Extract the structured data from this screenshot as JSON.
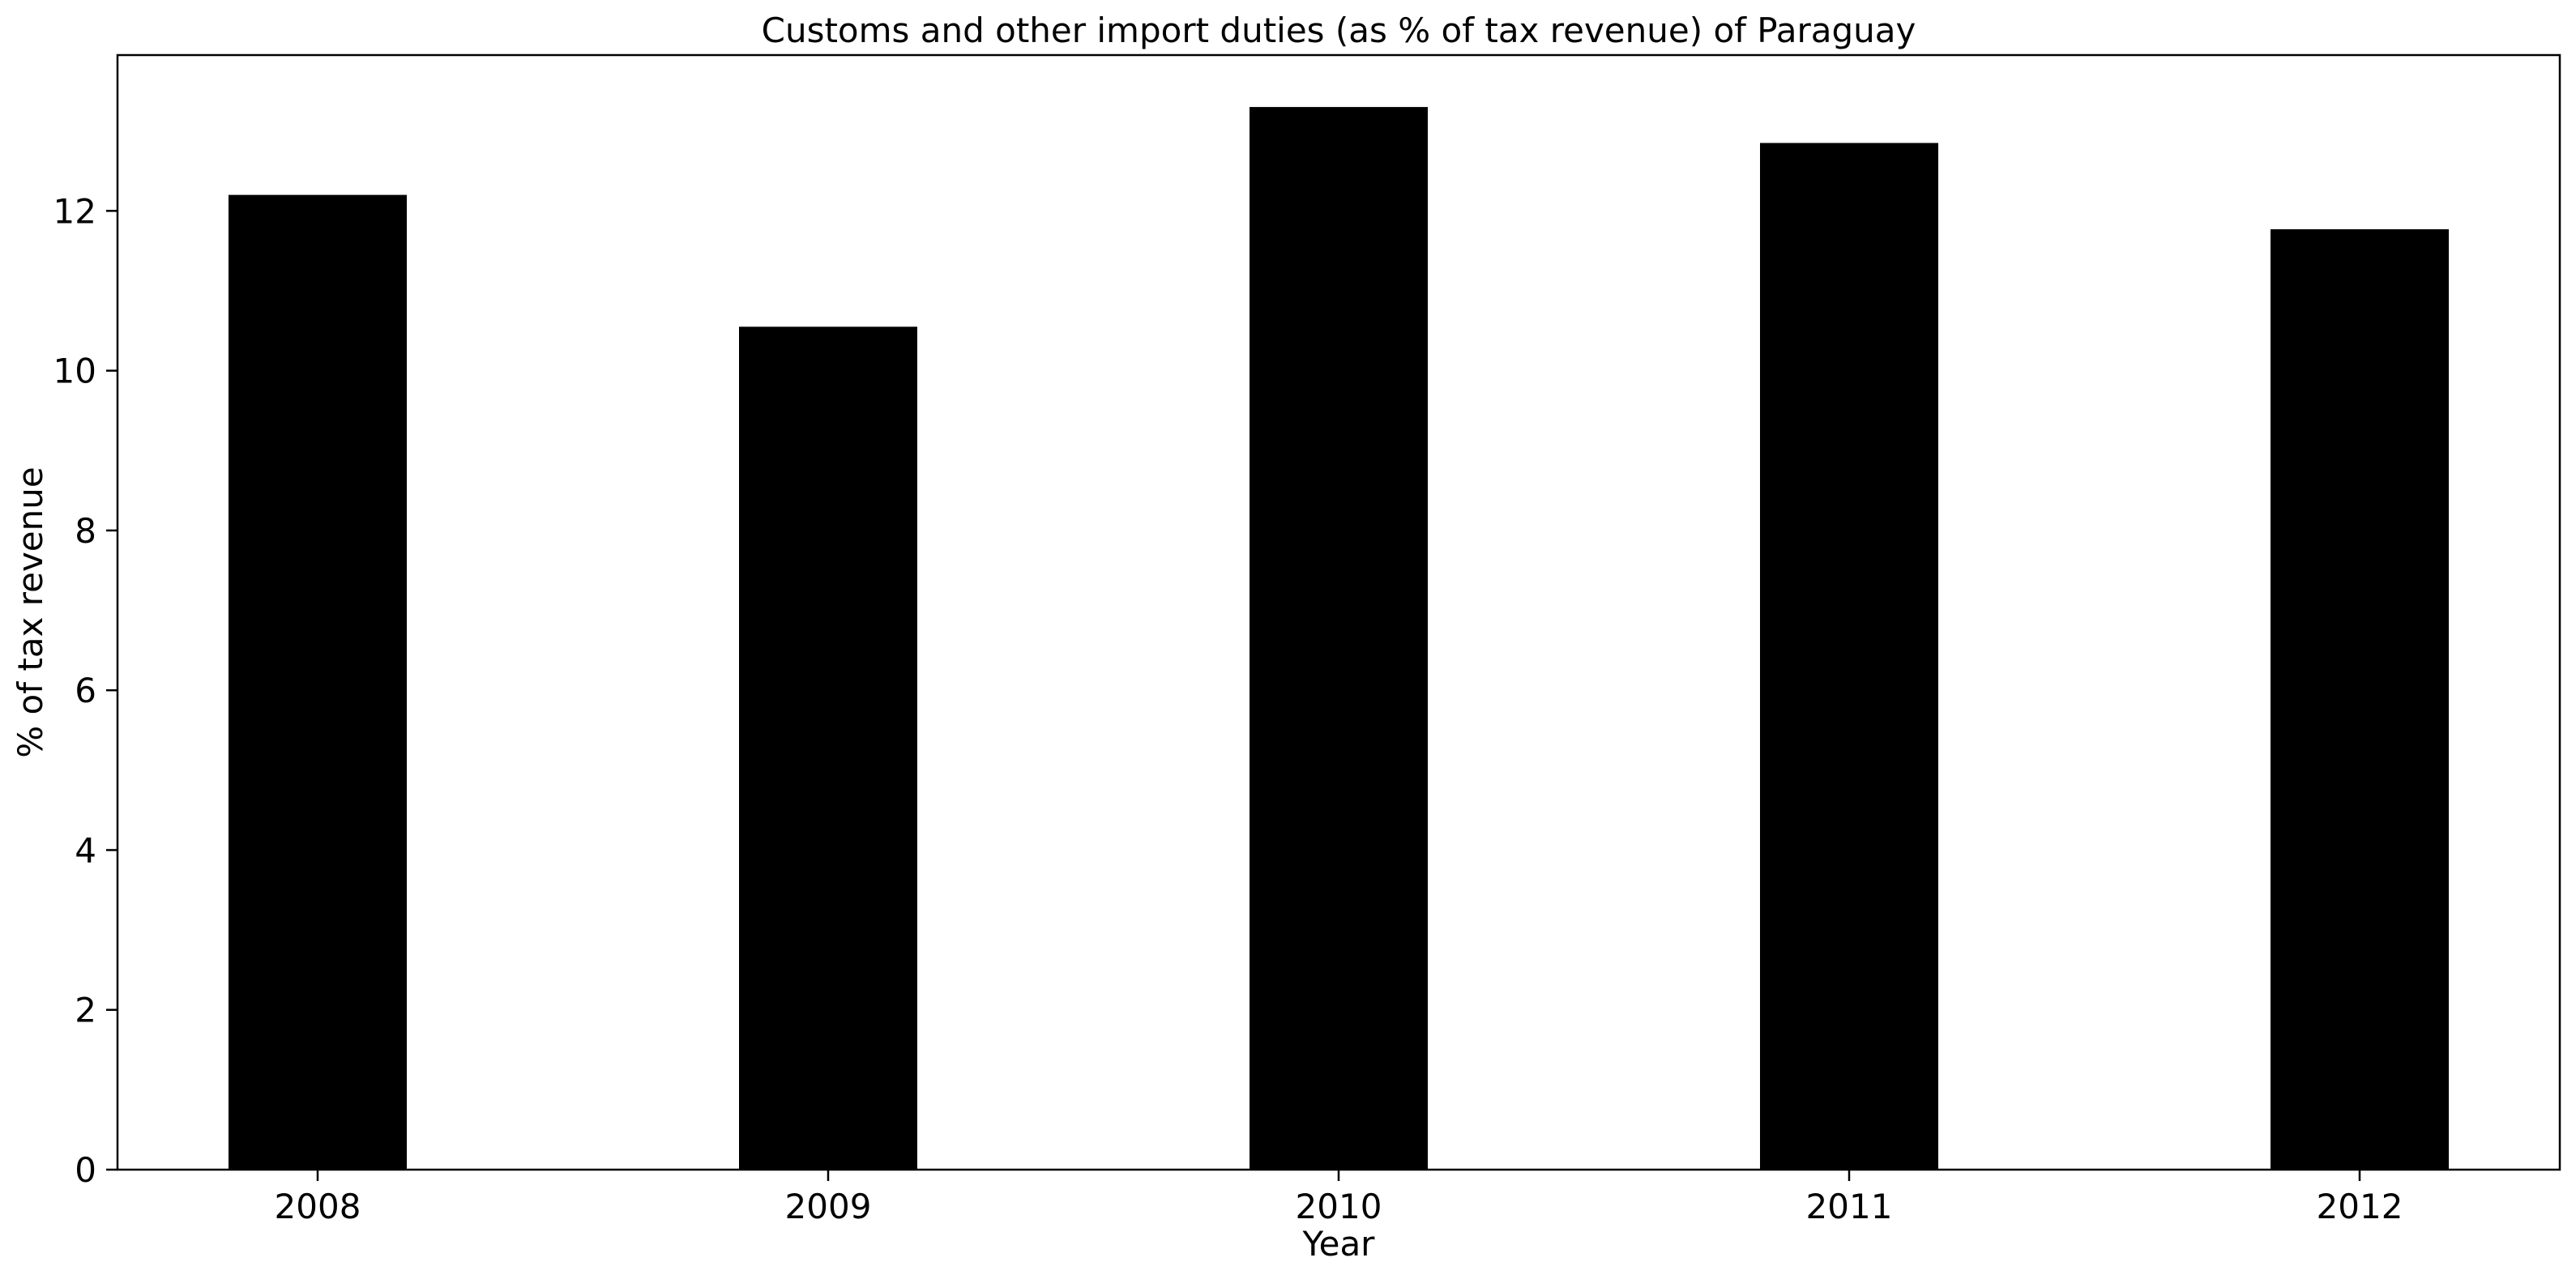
{
  "chart_data": {
    "type": "bar",
    "title": "Customs and other import duties (as % of tax revenue) of Paraguay",
    "xlabel": "Year",
    "ylabel": "% of tax revenue",
    "categories": [
      "2008",
      "2009",
      "2010",
      "2011",
      "2012"
    ],
    "series": [
      {
        "values": [
          12.2,
          10.55,
          13.3,
          12.85,
          11.77
        ]
      }
    ],
    "ylim": [
      0,
      14
    ],
    "yticks": [
      0,
      2,
      4,
      6,
      8,
      10,
      12
    ],
    "bar_color": "#000000",
    "grid": false,
    "legend": "none"
  }
}
